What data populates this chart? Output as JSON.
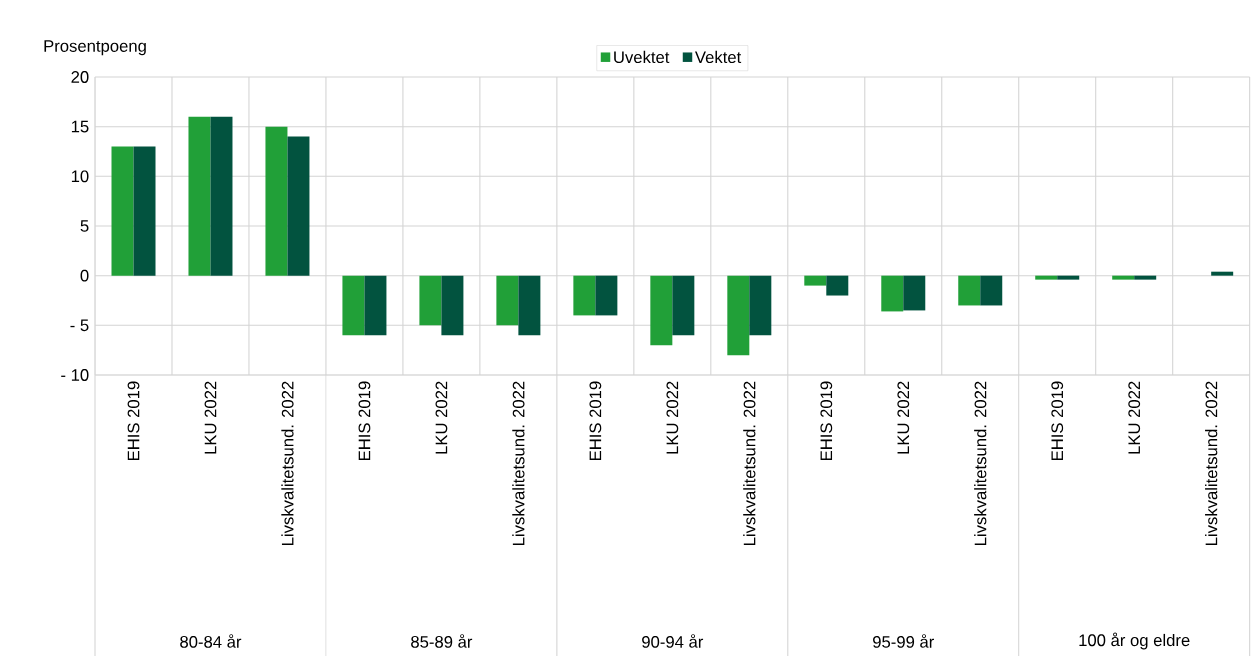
{
  "chart_data": {
    "type": "bar",
    "ylabel": "Prosentpoeng",
    "categories": [
      "EHIS 2019",
      "LKU 2022",
      "Livskvalitetsund. 2022",
      "EHIS 2019",
      "LKU 2022",
      "Livskvalitetsund. 2022",
      "EHIS 2019",
      "LKU 2022",
      "Livskvalitetsund. 2022",
      "EHIS 2019",
      "LKU 2022",
      "Livskvalitetsund. 2022",
      "EHIS 2019",
      "LKU 2022",
      "Livskvalitetsund. 2022"
    ],
    "series": [
      {
        "name": "Uvektet",
        "color": "#21a038",
        "values": [
          13,
          16,
          15,
          -6,
          -5,
          -5,
          -4,
          -7,
          -8,
          -1,
          -3.6,
          -3,
          -0.4,
          -0.4,
          null
        ]
      },
      {
        "name": "Vektet",
        "color": "#02533f",
        "values": [
          13,
          16,
          14,
          -6,
          -6,
          -6,
          -4,
          -6,
          -6,
          -2,
          -3.5,
          -3,
          -0.4,
          -0.4,
          0.4
        ]
      }
    ],
    "annotations": [
      "80-84 år",
      "85-89 år",
      "90-94 år",
      "95-99 år",
      "100 år og eldre"
    ],
    "ylim": [
      -10,
      20
    ],
    "yticks": [
      {
        "value": -10,
        "label": "- 10"
      },
      {
        "value": -5,
        "label": "- 5"
      },
      0,
      5,
      10,
      15,
      20
    ],
    "grid": true,
    "legend": "top"
  }
}
